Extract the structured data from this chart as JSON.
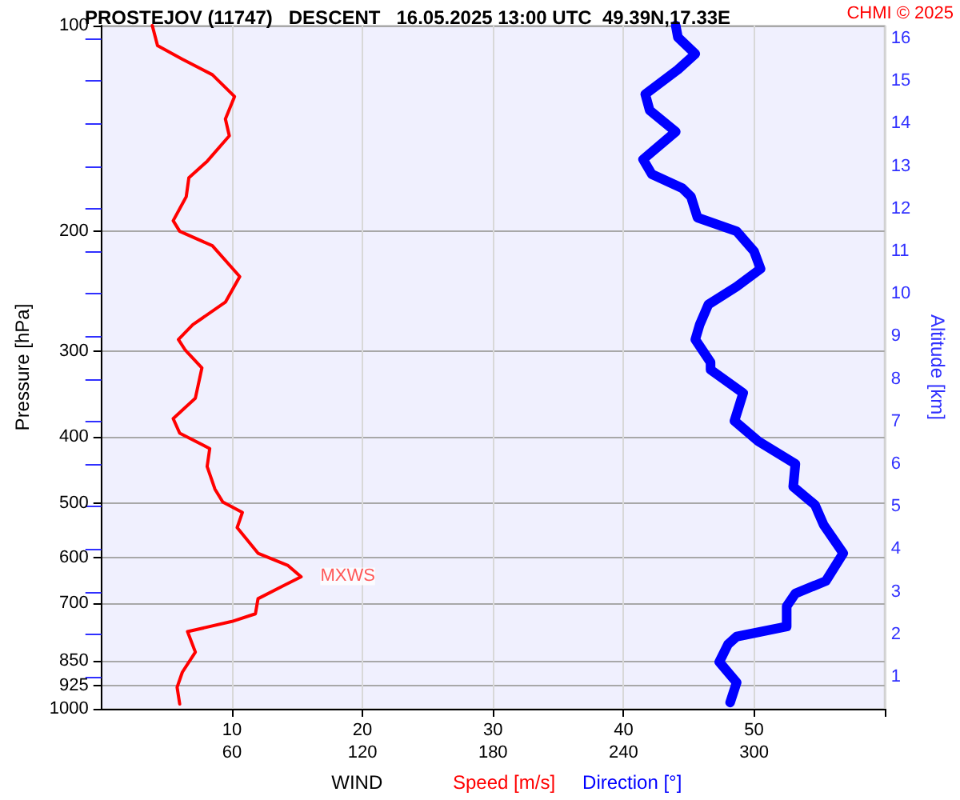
{
  "chart_data": {
    "type": "line",
    "orientation": "horizontal",
    "title": "PROSTEJOV (11747)   DESCENT   16.05.2025 13:00 UTC  49.39N,17.33E",
    "xlabel": "WIND",
    "ylabel": "Pressure [hPa]",
    "y2label": "Altitude [km]",
    "log": "y",
    "grid": true,
    "legend": "bottom",
    "marker": "none",
    "line_style": "solid",
    "xlim": [
      0,
      60
    ],
    "xticks": [
      10,
      20,
      30,
      40,
      50,
      {
        "value": 60,
        "label": null
      }
    ],
    "x2lim": [
      0,
      360
    ],
    "x2ticks": [
      60,
      120,
      180,
      240,
      300
    ],
    "ylim": [
      1000,
      100
    ],
    "yticks": [
      100,
      200,
      300,
      400,
      500,
      600,
      700,
      850,
      925,
      1000
    ],
    "y2lim": [
      0.25,
      16.3
    ],
    "y2ticks": [
      1,
      2,
      3,
      4,
      5,
      6,
      7,
      8,
      9,
      10,
      11,
      12,
      13,
      14,
      15,
      16
    ],
    "series": [
      {
        "name": "Speed [m/s]",
        "color": "#ff0000",
        "x": [
          100,
          107,
          112,
          118,
          127,
          137,
          145,
          158,
          167,
          178,
          193,
          200,
          210,
          233,
          254,
          274,
          288,
          298,
          301,
          317,
          351,
          376,
          395,
          416,
          442,
          477,
          498,
          516,
          543,
          592,
          617,
          641,
          661,
          690,
          726,
          745,
          771,
          826,
          884,
          930,
          984
        ],
        "values": [
          3.9,
          4.3,
          6.2,
          8.5,
          10.2,
          9.5,
          9.8,
          8.1,
          6.7,
          6.5,
          5.5,
          6.0,
          8.5,
          10.6,
          9.5,
          7.0,
          5.9,
          6.4,
          6.6,
          7.7,
          7.2,
          5.5,
          6.0,
          8.3,
          8.1,
          8.7,
          9.3,
          10.8,
          10.4,
          12.0,
          14.3,
          15.3,
          13.9,
          12.0,
          11.8,
          10.0,
          6.6,
          7.2,
          6.2,
          5.8,
          6.0
        ]
      },
      {
        "name": "Direction [°]",
        "color": "#0000ff",
        "axis": "x2",
        "x": [
          100,
          104,
          110,
          116,
          126,
          133,
          143,
          157,
          165,
          173,
          178,
          191,
          200,
          214,
          227,
          241,
          256,
          274,
          288,
          311,
          319,
          345,
          379,
          406,
          438,
          473,
          503,
          538,
          592,
          650,
          678,
          708,
          758,
          784,
          805,
          854,
          915,
          979
        ],
        "values": [
          264,
          265,
          273,
          265,
          250,
          252,
          264,
          249,
          253,
          267,
          271,
          274,
          292,
          300,
          303,
          292,
          279,
          275,
          273,
          280,
          280,
          295,
          291,
          302,
          319,
          318,
          328,
          332,
          341,
          333,
          319,
          315,
          315,
          292,
          288,
          284,
          292,
          289
        ]
      }
    ],
    "annotations": [
      {
        "text": "MXWS",
        "x": 15.3,
        "y": 640
      },
      "CHMI © 2025"
    ]
  }
}
